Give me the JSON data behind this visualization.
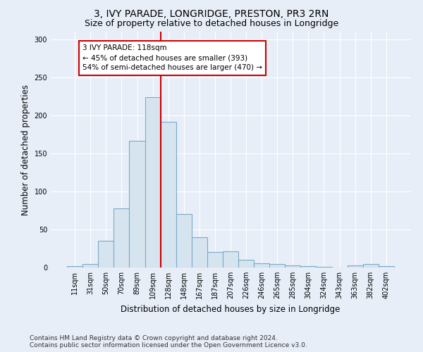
{
  "title": "3, IVY PARADE, LONGRIDGE, PRESTON, PR3 2RN",
  "subtitle": "Size of property relative to detached houses in Longridge",
  "xlabel": "Distribution of detached houses by size in Longridge",
  "ylabel": "Number of detached properties",
  "footer_line1": "Contains HM Land Registry data © Crown copyright and database right 2024.",
  "footer_line2": "Contains public sector information licensed under the Open Government Licence v3.0.",
  "bin_labels": [
    "11sqm",
    "31sqm",
    "50sqm",
    "70sqm",
    "89sqm",
    "109sqm",
    "128sqm",
    "148sqm",
    "167sqm",
    "187sqm",
    "207sqm",
    "226sqm",
    "246sqm",
    "265sqm",
    "285sqm",
    "304sqm",
    "324sqm",
    "343sqm",
    "363sqm",
    "382sqm",
    "402sqm"
  ],
  "bar_heights": [
    2,
    5,
    35,
    78,
    167,
    224,
    192,
    70,
    40,
    20,
    21,
    10,
    6,
    5,
    3,
    2,
    1,
    0,
    3,
    5,
    2
  ],
  "bar_color": "#d6e4f0",
  "bar_edge_color": "#7aabc8",
  "vline_index": 5,
  "vline_color": "#cc0000",
  "annotation_text": "3 IVY PARADE: 118sqm\n← 45% of detached houses are smaller (393)\n54% of semi-detached houses are larger (470) →",
  "annotation_box_color": "white",
  "annotation_box_edge_color": "#cc0000",
  "ylim": [
    0,
    310
  ],
  "yticks": [
    0,
    50,
    100,
    150,
    200,
    250,
    300
  ],
  "background_color": "#e8eef8",
  "grid_color": "white",
  "title_fontsize": 10,
  "subtitle_fontsize": 9,
  "axis_label_fontsize": 8.5,
  "tick_fontsize": 7,
  "footer_fontsize": 6.5,
  "ann_fontsize": 7.5
}
